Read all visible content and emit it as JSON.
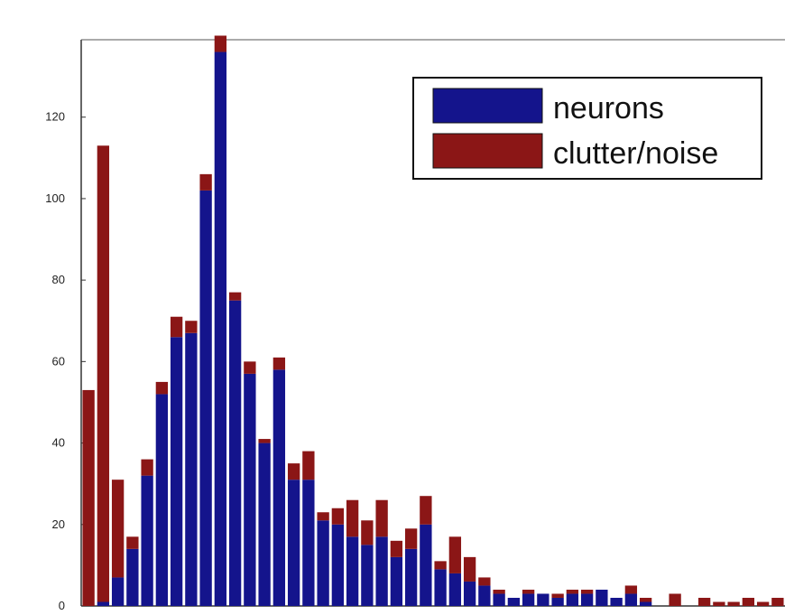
{
  "chart_data": {
    "type": "bar",
    "stacked": true,
    "series": [
      {
        "name": "neurons",
        "color": "#14148c",
        "values": [
          0,
          1,
          7,
          14,
          32,
          52,
          66,
          67,
          102,
          136,
          75,
          57,
          40,
          58,
          31,
          31,
          21,
          20,
          17,
          15,
          17,
          12,
          14,
          20,
          9,
          8,
          6,
          5,
          3,
          2,
          3,
          3,
          2,
          3,
          3,
          4,
          2,
          3,
          1,
          0,
          0,
          0,
          0,
          0,
          0,
          0,
          0,
          0
        ]
      },
      {
        "name": "clutter/noise",
        "color": "#8b1616",
        "values": [
          53,
          112,
          24,
          3,
          4,
          3,
          5,
          3,
          4,
          4,
          2,
          3,
          1,
          3,
          4,
          7,
          2,
          4,
          9,
          6,
          9,
          4,
          5,
          7,
          2,
          9,
          6,
          2,
          1,
          0,
          1,
          0,
          1,
          1,
          1,
          0,
          0,
          2,
          1,
          0,
          3,
          0,
          2,
          1,
          1,
          2,
          1,
          2
        ]
      }
    ],
    "yticks": [
      "0",
      "20",
      "40",
      "60",
      "80",
      "100",
      "120"
    ],
    "ylim": [
      0,
      139
    ],
    "legend_position": "top-right",
    "grid": false
  }
}
